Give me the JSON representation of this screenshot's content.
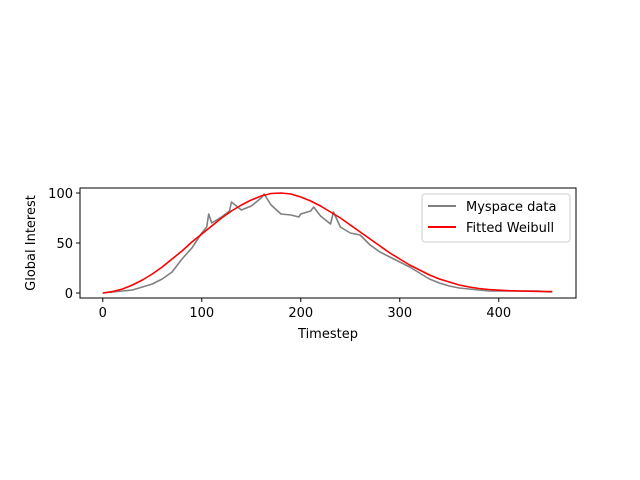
{
  "chart_data": {
    "type": "line",
    "title": "",
    "xlabel": "Timestep",
    "ylabel": "Global Interest",
    "xlim": [
      -23,
      478
    ],
    "ylim": [
      -5,
      105
    ],
    "xticks": [
      0,
      100,
      200,
      300,
      400
    ],
    "yticks": [
      0,
      50,
      100
    ],
    "grid": false,
    "legend_position": "upper right",
    "series": [
      {
        "name": "Myspace data",
        "color": "#808080",
        "x": [
          0,
          10,
          20,
          30,
          40,
          50,
          60,
          70,
          80,
          90,
          100,
          105,
          107,
          110,
          120,
          128,
          130,
          140,
          150,
          160,
          163,
          170,
          180,
          190,
          198,
          200,
          210,
          213,
          220,
          230,
          233,
          240,
          250,
          260,
          270,
          280,
          290,
          300,
          310,
          320,
          330,
          340,
          350,
          360,
          370,
          380,
          390,
          400,
          410,
          420,
          430,
          440,
          450,
          454
        ],
        "values": [
          0,
          1,
          2,
          3,
          6,
          9,
          14,
          21,
          34,
          45,
          60,
          66,
          79,
          70,
          76,
          82,
          91,
          83,
          87,
          95,
          99,
          88,
          79,
          78,
          76,
          79,
          82,
          86,
          77,
          69,
          81,
          66,
          60,
          58,
          48,
          41,
          36,
          31,
          26,
          20,
          14,
          10,
          7,
          5,
          4,
          3,
          2,
          2,
          2,
          2,
          2,
          2,
          1,
          1
        ]
      },
      {
        "name": "Fitted Weibull",
        "color": "#ff0000",
        "x": [
          0,
          10,
          20,
          30,
          40,
          50,
          60,
          70,
          80,
          90,
          100,
          110,
          120,
          130,
          140,
          150,
          160,
          170,
          180,
          190,
          200,
          210,
          220,
          230,
          240,
          250,
          260,
          270,
          280,
          290,
          300,
          310,
          320,
          330,
          340,
          350,
          360,
          370,
          380,
          390,
          400,
          410,
          420,
          430,
          440,
          450,
          454
        ],
        "values": [
          0,
          1.5,
          4,
          8,
          13,
          19,
          26,
          34,
          42,
          51,
          59,
          67,
          75,
          82,
          88,
          93,
          97,
          99.5,
          100,
          99,
          96,
          92,
          87,
          81,
          75,
          68,
          61,
          54,
          47,
          40,
          34,
          28,
          23,
          18,
          14,
          11,
          8,
          6,
          4.5,
          3.5,
          2.8,
          2.3,
          2,
          1.8,
          1.6,
          1.5,
          1.5
        ]
      }
    ]
  }
}
